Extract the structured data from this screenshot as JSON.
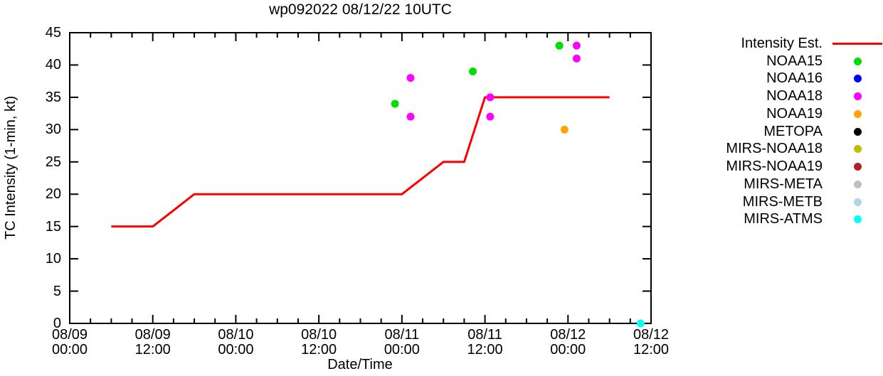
{
  "title": "wp092022 08/12/22 10UTC",
  "chart_data": {
    "type": "line",
    "title": "wp092022 08/12/22 10UTC",
    "xlabel": "Date/Time",
    "ylabel": "TC Intensity (1-min, kt)",
    "x_start": "08/09 00:00",
    "x_end": "08/12 12:00",
    "x_major_tick_hours": 12,
    "x_minor_tick_hours": 3,
    "ylim": [
      0,
      45
    ],
    "y_tick_step": 5,
    "grid": "off",
    "legend_position": "right-outside",
    "x_tick_labels": [
      {
        "date": "08/09",
        "time": "00:00"
      },
      {
        "date": "08/09",
        "time": "12:00"
      },
      {
        "date": "08/10",
        "time": "00:00"
      },
      {
        "date": "08/10",
        "time": "12:00"
      },
      {
        "date": "08/11",
        "time": "00:00"
      },
      {
        "date": "08/11",
        "time": "12:00"
      },
      {
        "date": "08/12",
        "time": "00:00"
      },
      {
        "date": "08/12",
        "time": "12:00"
      }
    ],
    "y_tick_labels": [
      "0",
      "5",
      "10",
      "15",
      "20",
      "25",
      "30",
      "35",
      "40",
      "45"
    ],
    "line_series": {
      "name": "Intensity Est.",
      "color": "#ff0000",
      "points": [
        [
          "08/09 06:00",
          15
        ],
        [
          "08/09 12:00",
          15
        ],
        [
          "08/09 18:00",
          20
        ],
        [
          "08/11 00:00",
          20
        ],
        [
          "08/11 06:00",
          25
        ],
        [
          "08/11 09:00",
          25
        ],
        [
          "08/11 12:00",
          35
        ],
        [
          "08/12 06:00",
          35
        ]
      ]
    },
    "scatter_series": [
      {
        "name": "NOAA15",
        "color": "#00dd00",
        "points": [
          [
            "08/10 23:00",
            34
          ],
          [
            "08/11 10:15",
            39
          ],
          [
            "08/11 22:45",
            43
          ]
        ]
      },
      {
        "name": "NOAA16",
        "color": "#0000ff",
        "points": []
      },
      {
        "name": "NOAA18",
        "color": "#ff00ff",
        "points": [
          [
            "08/11 01:15",
            38
          ],
          [
            "08/11 01:15",
            32
          ],
          [
            "08/11 12:45",
            35
          ],
          [
            "08/11 12:45",
            32
          ],
          [
            "08/12 01:15",
            43
          ],
          [
            "08/12 01:15",
            41
          ]
        ]
      },
      {
        "name": "NOAA19",
        "color": "#ffa500",
        "points": [
          [
            "08/11 23:30",
            30
          ]
        ]
      },
      {
        "name": "METOPA",
        "color": "#000000",
        "points": []
      },
      {
        "name": "MIRS-NOAA18",
        "color": "#bfbf00",
        "points": []
      },
      {
        "name": "MIRS-NOAA19",
        "color": "#b22222",
        "points": []
      },
      {
        "name": "MIRS-META",
        "color": "#c0c0c0",
        "points": []
      },
      {
        "name": "MIRS-METB",
        "color": "#add8e6",
        "points": []
      },
      {
        "name": "MIRS-ATMS",
        "color": "#00ffff",
        "points": [
          [
            "08/12 10:30",
            0
          ]
        ]
      }
    ]
  }
}
